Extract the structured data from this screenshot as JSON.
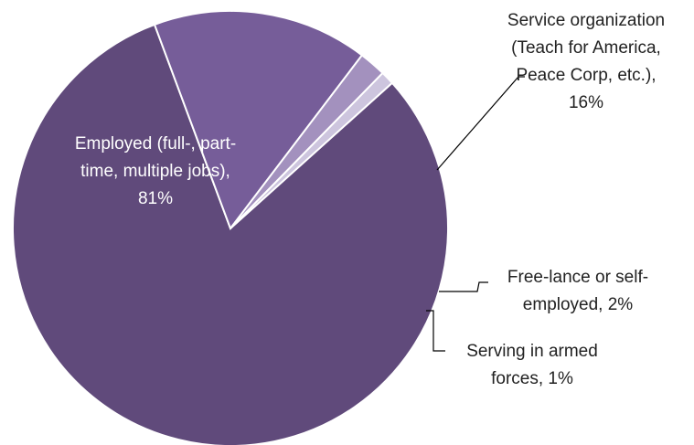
{
  "chart_data": {
    "type": "pie",
    "title": "",
    "slices": [
      {
        "name": "Employed (full-, part-time, multiple jobs)",
        "value": 81,
        "label_lines": [
          "Employed (full-, part-",
          "time, multiple jobs),",
          "81%"
        ],
        "color": "#604A7B"
      },
      {
        "name": "Service organization (Teach for America, Peace Corp, etc.)",
        "value": 16,
        "label_lines": [
          "Service organization",
          "(Teach for America,",
          "Peace Corp, etc.),",
          "16%"
        ],
        "color": "#765D99"
      },
      {
        "name": "Free-lance or self-employed",
        "value": 2,
        "label_lines": [
          "Free-lance or self-",
          "employed, 2%"
        ],
        "color": "#A391BE"
      },
      {
        "name": "Serving in armed forces",
        "value": 1,
        "label_lines": [
          "Serving in armed",
          "forces, 1%"
        ],
        "color": "#CDC5DE"
      }
    ],
    "legend": "none",
    "data_labels": "category name and percentage"
  }
}
